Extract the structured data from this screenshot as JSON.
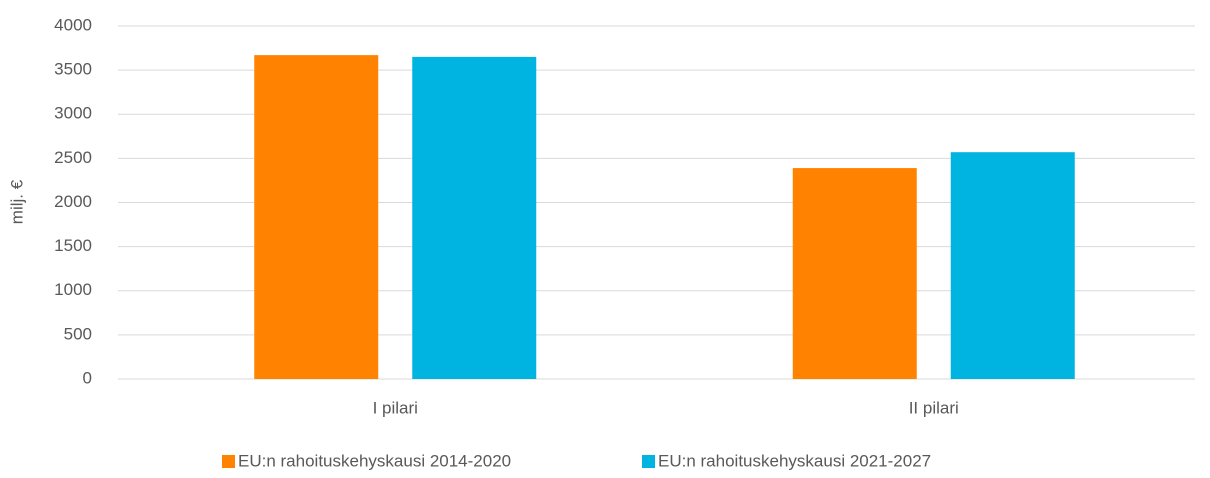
{
  "chart_data": {
    "type": "bar",
    "y_label": "milj. €",
    "categories": [
      "I pilari",
      "II pilari"
    ],
    "series": [
      {
        "name": "EU:n rahoituskehyskausi 2014-2020",
        "color": "#ff8300",
        "values": [
          3670,
          2390
        ]
      },
      {
        "name": "EU:n rahoituskehyskausi 2021-2027",
        "color": "#00b4e1",
        "values": [
          3650,
          2570
        ]
      }
    ],
    "ylim": [
      0,
      4000
    ],
    "yticks": [
      0,
      500,
      1000,
      1500,
      2000,
      2500,
      3000,
      3500,
      4000
    ],
    "grid": true,
    "legend": "bottom"
  }
}
